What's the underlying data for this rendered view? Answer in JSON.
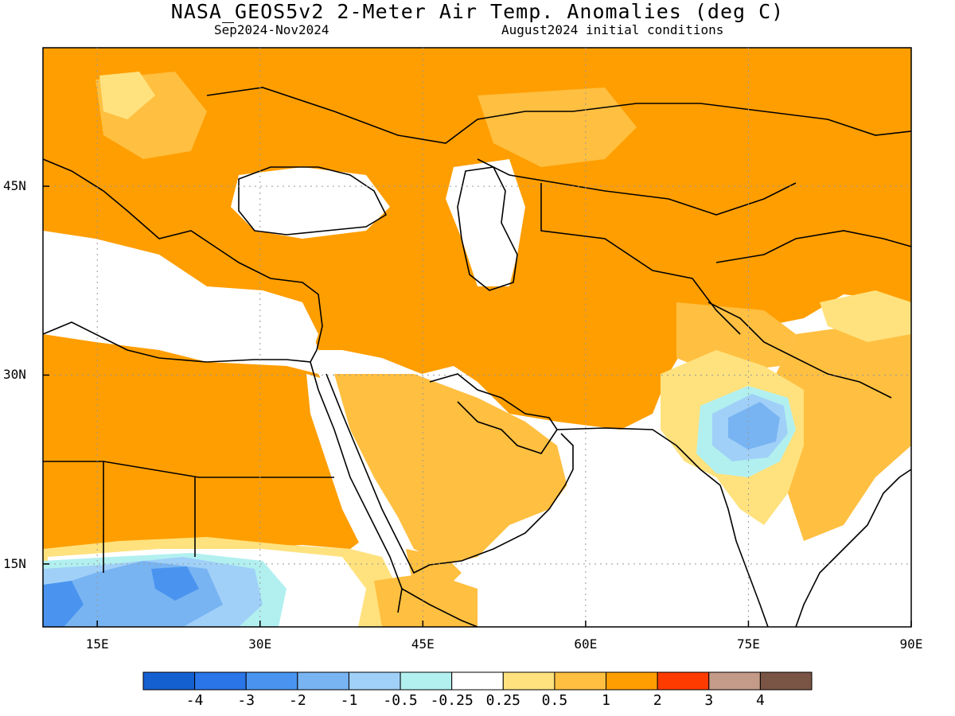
{
  "title": "NASA_GEOS5v2 2-Meter Air Temp. Anomalies (deg C)",
  "subtitle_left": "Sep2024-Nov2024",
  "subtitle_right": "August2024 initial conditions",
  "map": {
    "lon_range": [
      10,
      90
    ],
    "lat_range": [
      10,
      56
    ],
    "lat_labels": [
      {
        "value": 45,
        "text": "45N"
      },
      {
        "value": 30,
        "text": "30N"
      },
      {
        "value": 15,
        "text": "15N"
      }
    ],
    "lon_labels": [
      {
        "value": 15,
        "text": "15E"
      },
      {
        "value": 30,
        "text": "30E"
      },
      {
        "value": 45,
        "text": "45E"
      },
      {
        "value": 60,
        "text": "60E"
      },
      {
        "value": 75,
        "text": "75E"
      },
      {
        "value": 90,
        "text": "90E"
      }
    ]
  },
  "colorbar": {
    "colors": [
      "#1560d0",
      "#2a75e8",
      "#4a94f0",
      "#78b4f2",
      "#a0d0f8",
      "#b2f0f0",
      "#ffffff",
      "#ffe27e",
      "#ffbf40",
      "#ff9e00",
      "#ff3b00",
      "#c49a88",
      "#7a5444"
    ],
    "tick_labels": [
      "-4",
      "-3",
      "-2",
      "-1",
      "-0.5",
      "-0.25",
      "0.25",
      "0.5",
      "1",
      "2",
      "3",
      "4"
    ]
  }
}
